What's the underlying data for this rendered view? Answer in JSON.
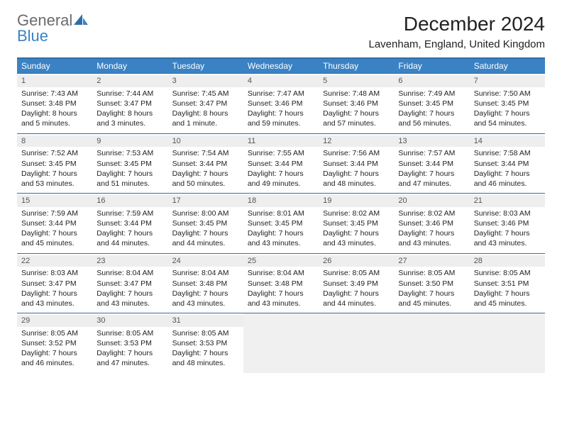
{
  "brand": {
    "general": "General",
    "blue": "Blue"
  },
  "title": "December 2024",
  "location": "Lavenham, England, United Kingdom",
  "colors": {
    "header_bg": "#3a82c4",
    "header_text": "#ffffff",
    "rule": "#2f6fa8",
    "daynum_bg": "#eeeeee",
    "empty_bg": "#f0f0f0",
    "text": "#222222"
  },
  "day_names": [
    "Sunday",
    "Monday",
    "Tuesday",
    "Wednesday",
    "Thursday",
    "Friday",
    "Saturday"
  ],
  "weeks": [
    [
      {
        "n": "1",
        "sr": "Sunrise: 7:43 AM",
        "ss": "Sunset: 3:48 PM",
        "dl": "Daylight: 8 hours and 5 minutes."
      },
      {
        "n": "2",
        "sr": "Sunrise: 7:44 AM",
        "ss": "Sunset: 3:47 PM",
        "dl": "Daylight: 8 hours and 3 minutes."
      },
      {
        "n": "3",
        "sr": "Sunrise: 7:45 AM",
        "ss": "Sunset: 3:47 PM",
        "dl": "Daylight: 8 hours and 1 minute."
      },
      {
        "n": "4",
        "sr": "Sunrise: 7:47 AM",
        "ss": "Sunset: 3:46 PM",
        "dl": "Daylight: 7 hours and 59 minutes."
      },
      {
        "n": "5",
        "sr": "Sunrise: 7:48 AM",
        "ss": "Sunset: 3:46 PM",
        "dl": "Daylight: 7 hours and 57 minutes."
      },
      {
        "n": "6",
        "sr": "Sunrise: 7:49 AM",
        "ss": "Sunset: 3:45 PM",
        "dl": "Daylight: 7 hours and 56 minutes."
      },
      {
        "n": "7",
        "sr": "Sunrise: 7:50 AM",
        "ss": "Sunset: 3:45 PM",
        "dl": "Daylight: 7 hours and 54 minutes."
      }
    ],
    [
      {
        "n": "8",
        "sr": "Sunrise: 7:52 AM",
        "ss": "Sunset: 3:45 PM",
        "dl": "Daylight: 7 hours and 53 minutes."
      },
      {
        "n": "9",
        "sr": "Sunrise: 7:53 AM",
        "ss": "Sunset: 3:45 PM",
        "dl": "Daylight: 7 hours and 51 minutes."
      },
      {
        "n": "10",
        "sr": "Sunrise: 7:54 AM",
        "ss": "Sunset: 3:44 PM",
        "dl": "Daylight: 7 hours and 50 minutes."
      },
      {
        "n": "11",
        "sr": "Sunrise: 7:55 AM",
        "ss": "Sunset: 3:44 PM",
        "dl": "Daylight: 7 hours and 49 minutes."
      },
      {
        "n": "12",
        "sr": "Sunrise: 7:56 AM",
        "ss": "Sunset: 3:44 PM",
        "dl": "Daylight: 7 hours and 48 minutes."
      },
      {
        "n": "13",
        "sr": "Sunrise: 7:57 AM",
        "ss": "Sunset: 3:44 PM",
        "dl": "Daylight: 7 hours and 47 minutes."
      },
      {
        "n": "14",
        "sr": "Sunrise: 7:58 AM",
        "ss": "Sunset: 3:44 PM",
        "dl": "Daylight: 7 hours and 46 minutes."
      }
    ],
    [
      {
        "n": "15",
        "sr": "Sunrise: 7:59 AM",
        "ss": "Sunset: 3:44 PM",
        "dl": "Daylight: 7 hours and 45 minutes."
      },
      {
        "n": "16",
        "sr": "Sunrise: 7:59 AM",
        "ss": "Sunset: 3:44 PM",
        "dl": "Daylight: 7 hours and 44 minutes."
      },
      {
        "n": "17",
        "sr": "Sunrise: 8:00 AM",
        "ss": "Sunset: 3:45 PM",
        "dl": "Daylight: 7 hours and 44 minutes."
      },
      {
        "n": "18",
        "sr": "Sunrise: 8:01 AM",
        "ss": "Sunset: 3:45 PM",
        "dl": "Daylight: 7 hours and 43 minutes."
      },
      {
        "n": "19",
        "sr": "Sunrise: 8:02 AM",
        "ss": "Sunset: 3:45 PM",
        "dl": "Daylight: 7 hours and 43 minutes."
      },
      {
        "n": "20",
        "sr": "Sunrise: 8:02 AM",
        "ss": "Sunset: 3:46 PM",
        "dl": "Daylight: 7 hours and 43 minutes."
      },
      {
        "n": "21",
        "sr": "Sunrise: 8:03 AM",
        "ss": "Sunset: 3:46 PM",
        "dl": "Daylight: 7 hours and 43 minutes."
      }
    ],
    [
      {
        "n": "22",
        "sr": "Sunrise: 8:03 AM",
        "ss": "Sunset: 3:47 PM",
        "dl": "Daylight: 7 hours and 43 minutes."
      },
      {
        "n": "23",
        "sr": "Sunrise: 8:04 AM",
        "ss": "Sunset: 3:47 PM",
        "dl": "Daylight: 7 hours and 43 minutes."
      },
      {
        "n": "24",
        "sr": "Sunrise: 8:04 AM",
        "ss": "Sunset: 3:48 PM",
        "dl": "Daylight: 7 hours and 43 minutes."
      },
      {
        "n": "25",
        "sr": "Sunrise: 8:04 AM",
        "ss": "Sunset: 3:48 PM",
        "dl": "Daylight: 7 hours and 43 minutes."
      },
      {
        "n": "26",
        "sr": "Sunrise: 8:05 AM",
        "ss": "Sunset: 3:49 PM",
        "dl": "Daylight: 7 hours and 44 minutes."
      },
      {
        "n": "27",
        "sr": "Sunrise: 8:05 AM",
        "ss": "Sunset: 3:50 PM",
        "dl": "Daylight: 7 hours and 45 minutes."
      },
      {
        "n": "28",
        "sr": "Sunrise: 8:05 AM",
        "ss": "Sunset: 3:51 PM",
        "dl": "Daylight: 7 hours and 45 minutes."
      }
    ],
    [
      {
        "n": "29",
        "sr": "Sunrise: 8:05 AM",
        "ss": "Sunset: 3:52 PM",
        "dl": "Daylight: 7 hours and 46 minutes."
      },
      {
        "n": "30",
        "sr": "Sunrise: 8:05 AM",
        "ss": "Sunset: 3:53 PM",
        "dl": "Daylight: 7 hours and 47 minutes."
      },
      {
        "n": "31",
        "sr": "Sunrise: 8:05 AM",
        "ss": "Sunset: 3:53 PM",
        "dl": "Daylight: 7 hours and 48 minutes."
      },
      null,
      null,
      null,
      null
    ]
  ]
}
